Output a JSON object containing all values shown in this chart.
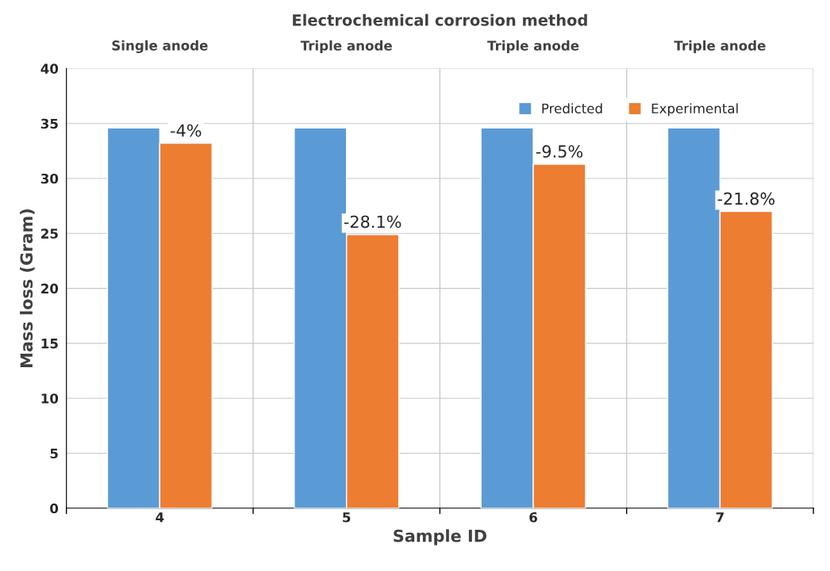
{
  "chart_data": {
    "type": "bar",
    "title": "Electrochemical corrosion method",
    "xlabel": "Sample ID",
    "ylabel": "Mass loss (Gram)",
    "categories": [
      "4",
      "5",
      "6",
      "7"
    ],
    "series": [
      {
        "name": "Predicted",
        "color": "#5b9bd5",
        "values": [
          34.6,
          34.6,
          34.6,
          34.6
        ]
      },
      {
        "name": "Experimental",
        "color": "#ed7d31",
        "values": [
          33.2,
          24.9,
          31.3,
          27.0
        ]
      }
    ],
    "annotations": [
      "Single anode",
      "Triple anode",
      "Triple anode",
      "Triple anode",
      {
        "text": "-4%",
        "x": "4",
        "y": 33.2
      },
      {
        "text": "-28.1%",
        "x": "5",
        "y": 24.9
      },
      {
        "text": "-9.5%",
        "x": "6",
        "y": 31.3
      },
      {
        "text": "-21.8%",
        "x": "7",
        "y": 27.0
      }
    ],
    "ylim": [
      0,
      40
    ],
    "yticks": [
      0,
      5,
      10,
      15,
      20,
      25,
      30,
      35,
      40
    ],
    "grid": true,
    "legend": "top right"
  }
}
